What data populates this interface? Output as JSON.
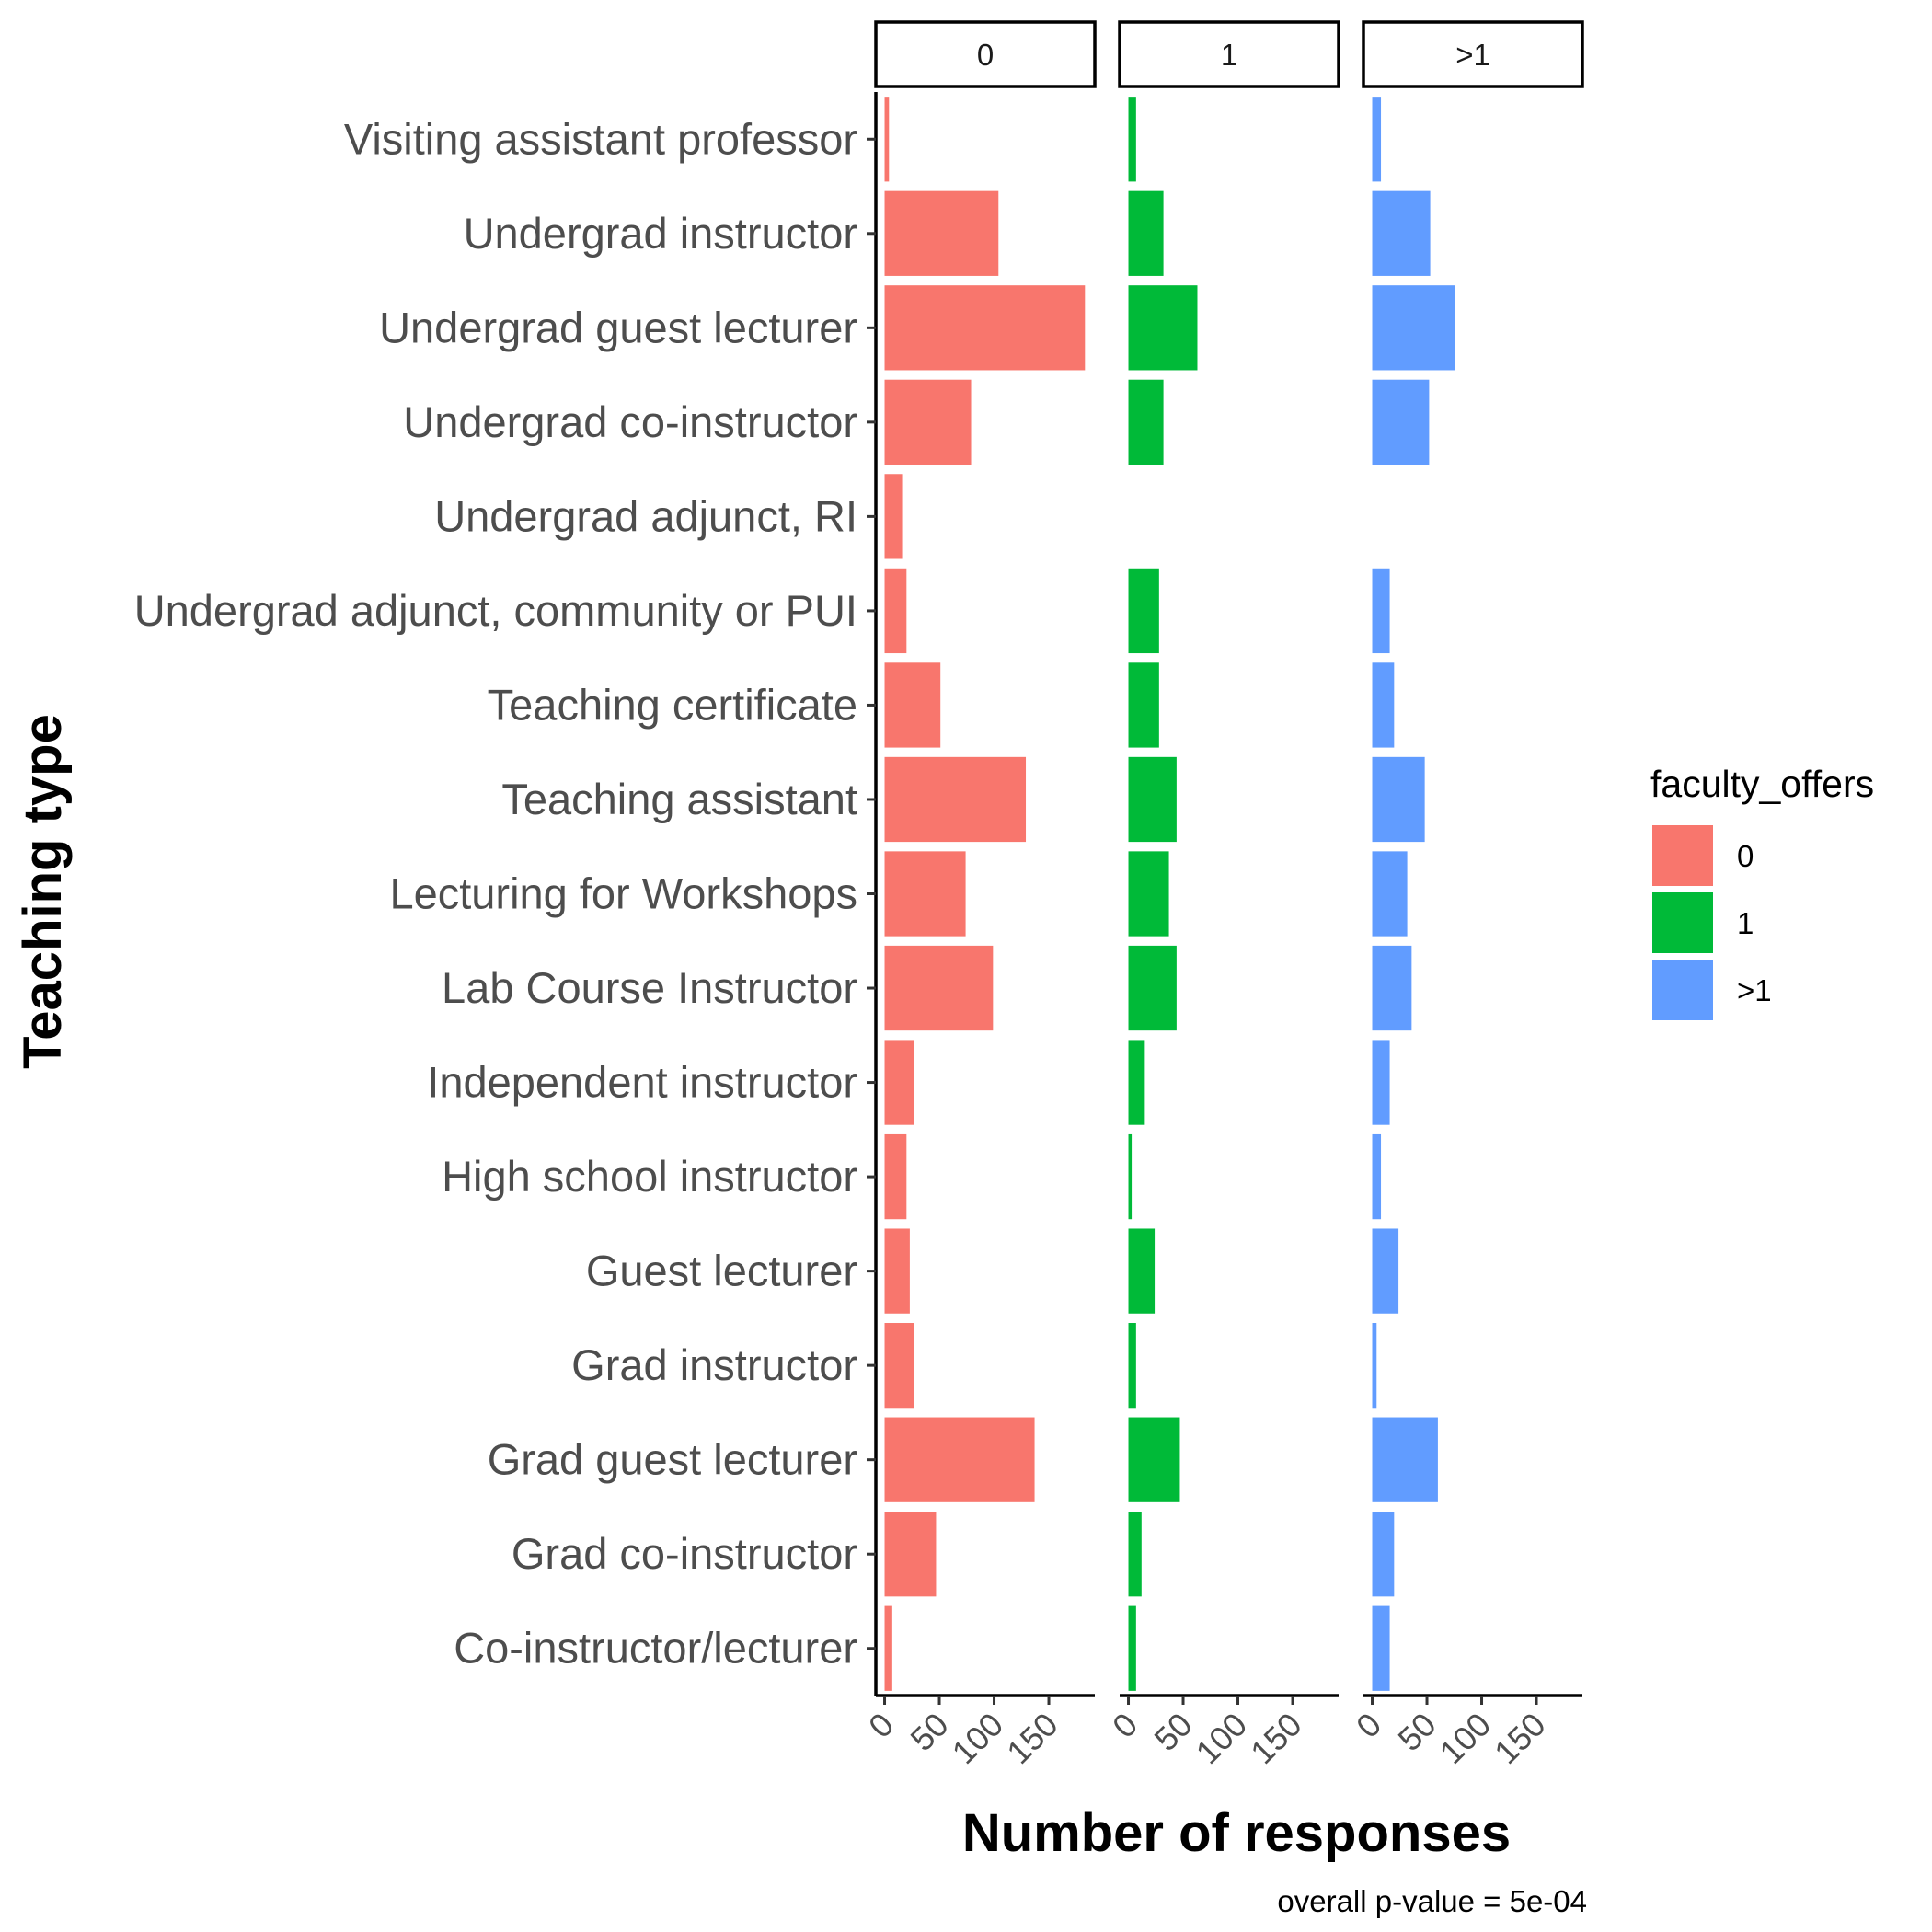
{
  "chart_data": {
    "type": "bar",
    "orientation": "horizontal",
    "facets": [
      "0",
      "1",
      ">1"
    ],
    "categories": [
      "Visiting assistant professor",
      "Undergrad instructor",
      "Undergrad guest lecturer",
      "Undergrad co-instructor",
      "Undergrad adjunct, RI",
      "Undergrad adjunct, community or PUI",
      "Teaching certificate",
      "Teaching assistant",
      "Lecturing for Workshops",
      "Lab Course Instructor",
      "Independent instructor",
      "High school instructor",
      "Guest lecturer",
      "Grad instructor",
      "Grad guest lecturer",
      "Grad co-instructor",
      "Co-instructor/lecturer"
    ],
    "series": [
      {
        "name": "0",
        "color": "#F8766D",
        "values": [
          4,
          104,
          183,
          79,
          16,
          20,
          51,
          129,
          74,
          99,
          27,
          20,
          23,
          27,
          137,
          47,
          7
        ]
      },
      {
        "name": "1",
        "color": "#00BA38",
        "values": [
          7,
          32,
          63,
          32,
          null,
          28,
          28,
          44,
          37,
          44,
          15,
          3,
          24,
          7,
          47,
          12,
          7
        ]
      },
      {
        "name": ">1",
        "color": "#619CFF",
        "values": [
          8,
          53,
          76,
          52,
          null,
          16,
          20,
          48,
          32,
          36,
          16,
          8,
          24,
          4,
          60,
          20,
          16
        ]
      }
    ],
    "xlim": [
      -8,
      192
    ],
    "xticks": [
      0,
      50,
      100,
      150
    ],
    "xlabel": "Number of responses",
    "ylabel": "Teaching type",
    "legend": {
      "title": "faculty_offers",
      "labels": [
        "0",
        "1",
        ">1"
      ],
      "position": "right"
    },
    "caption": "overall p-value =  5e-04",
    "grid": false
  }
}
